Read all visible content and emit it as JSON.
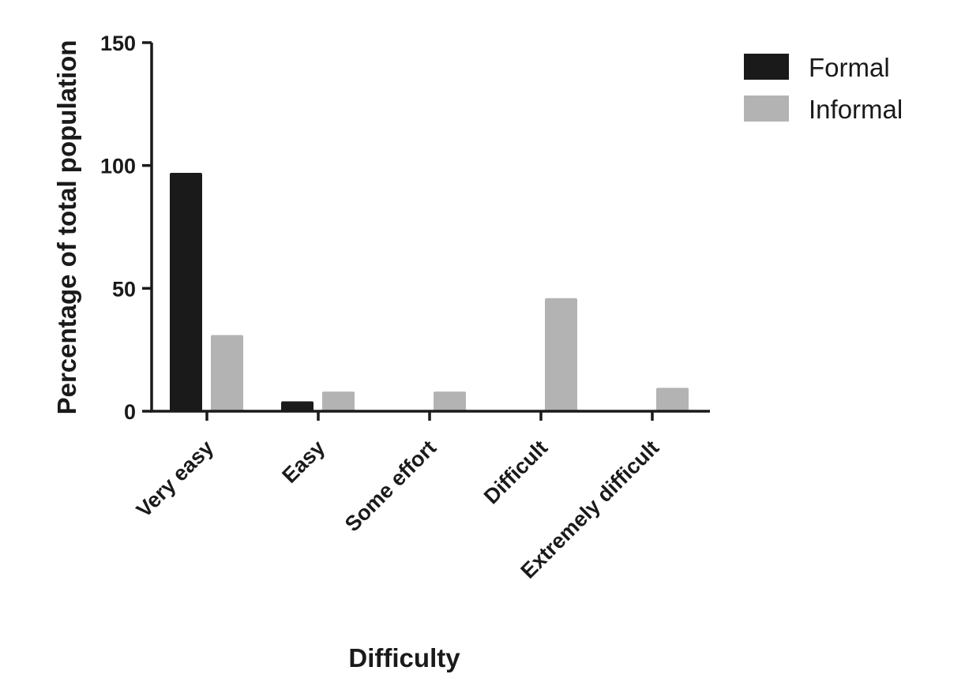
{
  "chart_data": {
    "type": "bar",
    "xlabel": "Difficulty",
    "ylabel": "Percentage of total population",
    "categories": [
      "Very easy",
      "Easy",
      "Some effort",
      "Difficult",
      "Extremely difficult"
    ],
    "series": [
      {
        "name": "Formal",
        "values": [
          97,
          4,
          0,
          0,
          0
        ],
        "color": "#1a1a1a"
      },
      {
        "name": "Informal",
        "values": [
          31,
          8,
          8,
          46,
          9.5
        ],
        "color": "#b3b3b3"
      }
    ],
    "ylim": [
      0,
      150
    ],
    "yticks": [
      0,
      50,
      100,
      150
    ],
    "ytick_labels": [
      "0",
      "50",
      "100",
      "150"
    ],
    "grid": false,
    "legend_position": "top-right"
  }
}
